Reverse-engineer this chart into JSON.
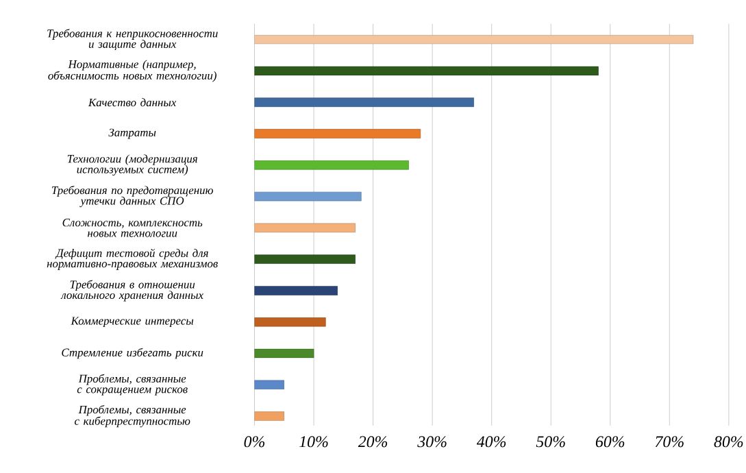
{
  "chart_data": {
    "type": "bar",
    "orientation": "horizontal",
    "categories": [
      "Требования к неприкосновенности и защите данных",
      "Нормативные (например, объяснимость новых технологии)",
      "Качество данных",
      "Затраты",
      "Технологии (модернизация используемых систем)",
      "Требования по предотвращению утечки данных  СПО",
      "Сложность, комплексность новых технологии",
      "Дефицит тестовой среды для нормативно-правовых механизмов",
      "Требования в отношении локального хранения данных",
      "Коммерческие интересы",
      "Стремление избегать риски",
      "Проблемы, связанные с сокращением рисков",
      "Проблемы, связанные с киберпреступностью"
    ],
    "values": [
      74,
      58,
      37,
      28,
      26,
      18,
      17,
      17,
      14,
      12,
      10,
      5,
      5
    ],
    "colors": [
      "#f4c49e",
      "#2e5a1c",
      "#3f6aa0",
      "#e87a2a",
      "#5cb82e",
      "#6f9bd0",
      "#f4b07a",
      "#2e5a1c",
      "#2a4478",
      "#c0601e",
      "#4a8a2a",
      "#5a88c8",
      "#f0a060"
    ],
    "xlim": [
      0,
      80
    ],
    "xticks": [
      {
        "value": 0,
        "label": "0%"
      },
      {
        "value": 10,
        "label": "10%"
      },
      {
        "value": 20,
        "label": "20%"
      },
      {
        "value": 30,
        "label": "30%"
      },
      {
        "value": 40,
        "label": "40%"
      },
      {
        "value": 50,
        "label": "50%"
      },
      {
        "value": 60,
        "label": "60%"
      },
      {
        "value": 70,
        "label": "70%"
      },
      {
        "value": 80,
        "label": "80%"
      }
    ],
    "grid": "x"
  }
}
